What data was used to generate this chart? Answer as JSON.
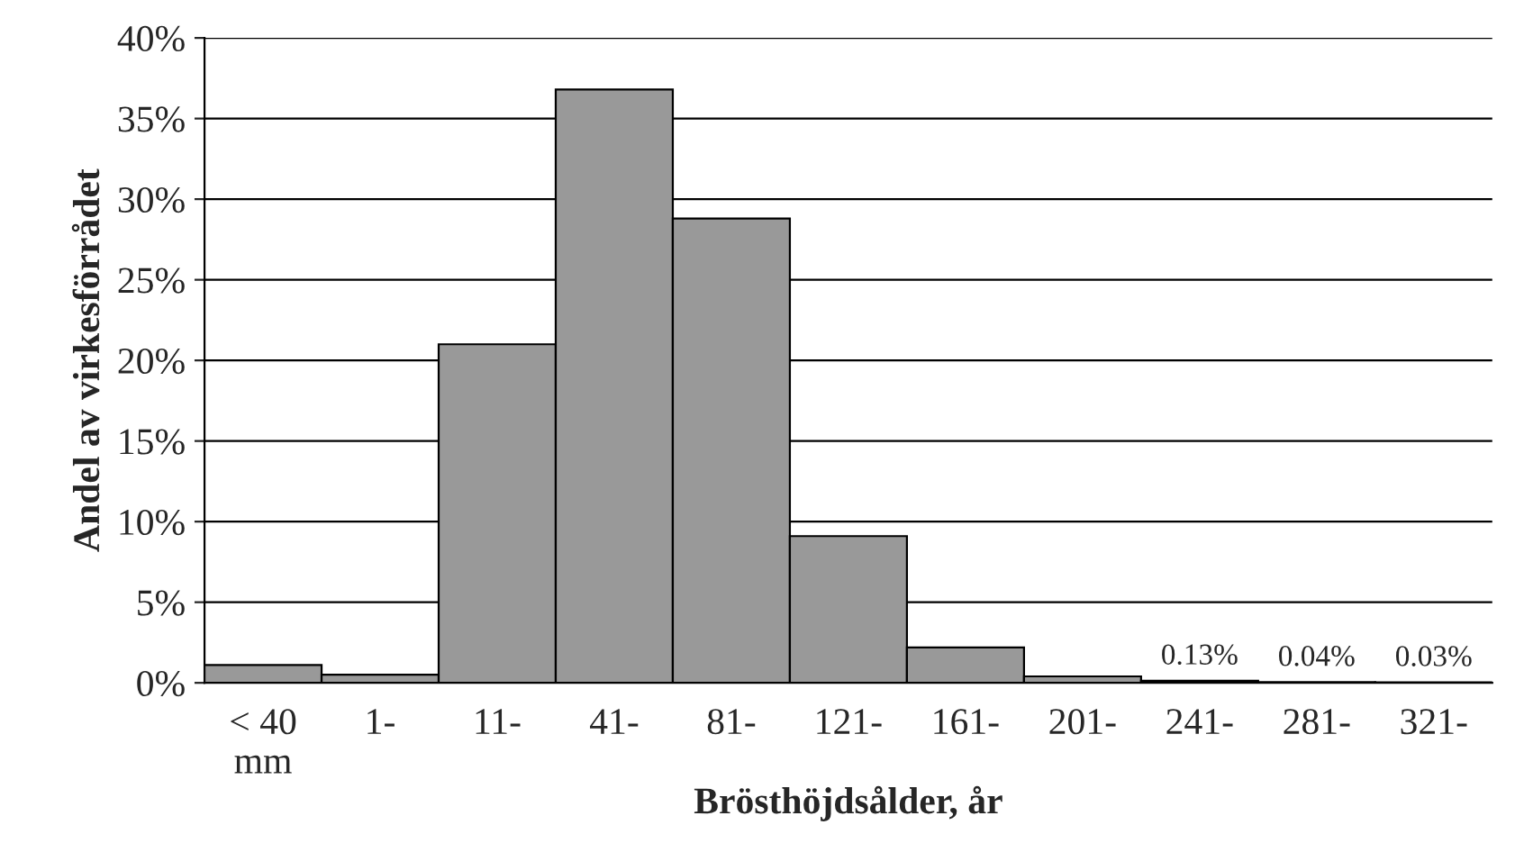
{
  "chart_data": {
    "type": "bar",
    "xlabel": "Brösthöjdsålder, år",
    "ylabel": "Andel av virkesförrådet",
    "categories": [
      "< 40\nmm",
      "1-",
      "11-",
      "41-",
      "81-",
      "121-",
      "161-",
      "201-",
      "241-",
      "281-",
      "321-"
    ],
    "values": [
      1.1,
      0.5,
      21.0,
      36.8,
      28.8,
      9.1,
      2.2,
      0.4,
      0.13,
      0.04,
      0.03
    ],
    "value_labels": [
      null,
      null,
      null,
      null,
      null,
      null,
      null,
      null,
      "0.13%",
      "0.04%",
      "0.03%"
    ],
    "color": "#999999",
    "ylim": [
      0,
      40
    ],
    "yticks": [
      {
        "value": 0,
        "label": "0%"
      },
      {
        "value": 5,
        "label": "5%"
      },
      {
        "value": 10,
        "label": "10%"
      },
      {
        "value": 15,
        "label": "15%"
      },
      {
        "value": 20,
        "label": "20%"
      },
      {
        "value": 25,
        "label": "25%"
      },
      {
        "value": 30,
        "label": "30%"
      },
      {
        "value": 35,
        "label": "35%"
      },
      {
        "value": 40,
        "label": "40%"
      }
    ],
    "grid": "y"
  }
}
